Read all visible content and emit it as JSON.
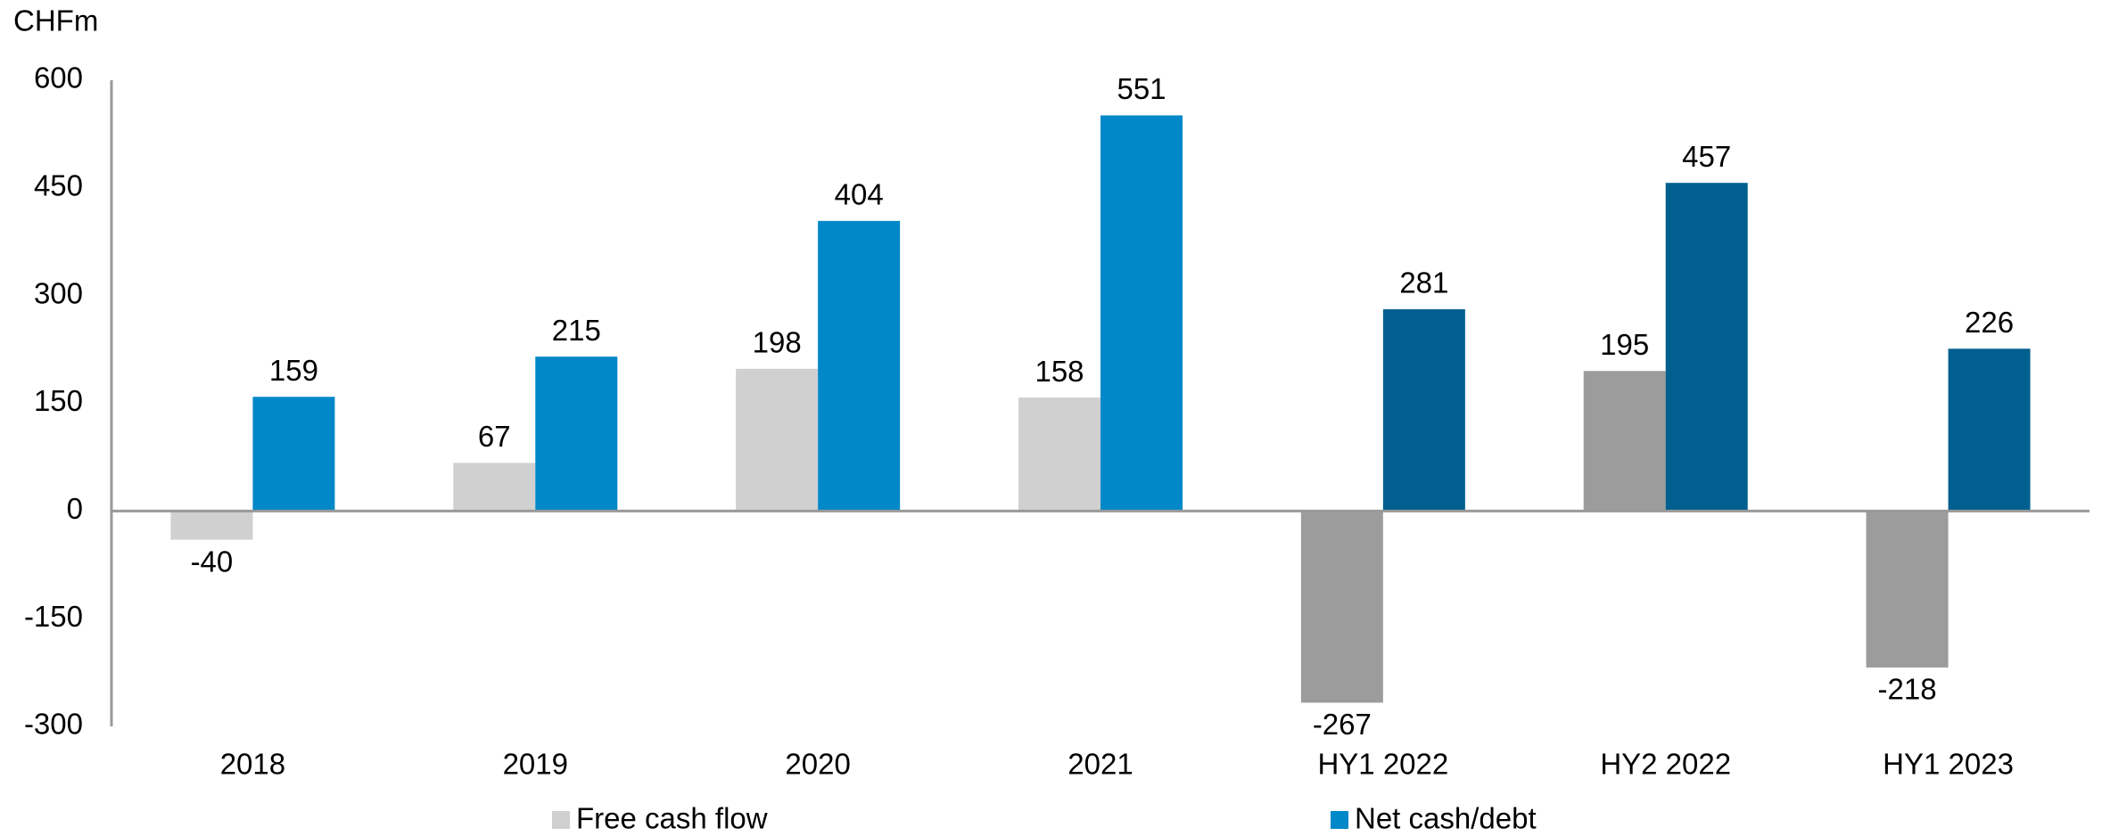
{
  "chart_data": {
    "type": "bar",
    "y_label": "CHFm",
    "categories": [
      "2018",
      "2019",
      "2020",
      "2021",
      "HY1 2022",
      "HY2 2022",
      "HY1 2023"
    ],
    "series": [
      {
        "name": "Free cash flow",
        "color": "#d0d0d0",
        "colors": [
          "#d0d0d0",
          "#d0d0d0",
          "#d0d0d0",
          "#d0d0d0",
          "#9c9c9c",
          "#9c9c9c",
          "#9c9c9c"
        ],
        "values": [
          -40,
          67,
          198,
          158,
          -267,
          195,
          -218
        ]
      },
      {
        "name": "Net cash/debt",
        "color": "#0088c8",
        "colors": [
          "#0088c8",
          "#0088c8",
          "#0088c8",
          "#0088c8",
          "#005f8f",
          "#005f8f",
          "#005f8f"
        ],
        "values": [
          159,
          215,
          404,
          551,
          281,
          457,
          226
        ]
      }
    ],
    "ylim": [
      -300,
      600
    ],
    "yticks": [
      -300,
      -150,
      0,
      150,
      300,
      450,
      600
    ],
    "grid": false,
    "legend": "bottom"
  }
}
